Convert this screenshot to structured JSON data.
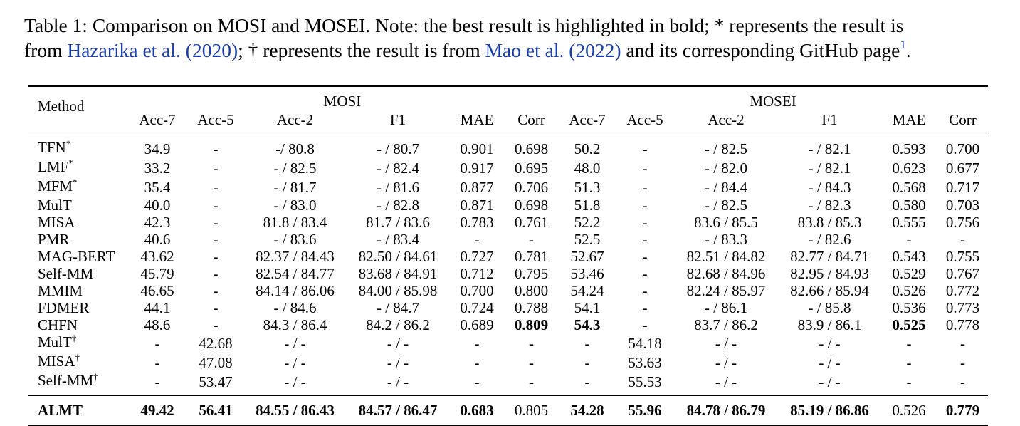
{
  "caption": {
    "part1": "Table 1: Comparison on MOSI and MOSEI. Note: the best result is highlighted in bold; * represents the result is",
    "part2": "from ",
    "cite1_author": "Hazarika et al.",
    "cite1_year": "2020",
    "part3": "; † represents the result is from ",
    "cite2_author": "Mao et al.",
    "cite2_year": "2022",
    "part4": " and its corresponding GitHub page",
    "footnote_mark": "1",
    "part5": "."
  },
  "header": {
    "method": "Method",
    "group_mosi": "MOSI",
    "group_mosei": "MOSEI",
    "columns": [
      "Acc-7",
      "Acc-5",
      "Acc-2",
      "F1",
      "MAE",
      "Corr",
      "Acc-7",
      "Acc-5",
      "Acc-2",
      "F1",
      "MAE",
      "Corr"
    ]
  },
  "rows": [
    {
      "name": "TFN",
      "mark": "*",
      "cells": [
        "34.9",
        "-",
        "-/ 80.8",
        "- / 80.7",
        "0.901",
        "0.698",
        "50.2",
        "-",
        "- / 82.5",
        "- / 82.1",
        "0.593",
        "0.700"
      ],
      "bold": []
    },
    {
      "name": "LMF",
      "mark": "*",
      "cells": [
        "33.2",
        "-",
        "- / 82.5",
        "- / 82.4",
        "0.917",
        "0.695",
        "48.0",
        "-",
        "- / 82.0",
        "- / 82.1",
        "0.623",
        "0.677"
      ],
      "bold": []
    },
    {
      "name": "MFM",
      "mark": "*",
      "cells": [
        "35.4",
        "-",
        "- / 81.7",
        "- / 81.6",
        "0.877",
        "0.706",
        "51.3",
        "-",
        "- / 84.4",
        "- / 84.3",
        "0.568",
        "0.717"
      ],
      "bold": []
    },
    {
      "name": "MulT",
      "mark": "",
      "cells": [
        "40.0",
        "-",
        "- / 83.0",
        "- / 82.8",
        "0.871",
        "0.698",
        "51.8",
        "-",
        "- / 82.5",
        "- / 82.3",
        "0.580",
        "0.703"
      ],
      "bold": []
    },
    {
      "name": "MISA",
      "mark": "",
      "cells": [
        "42.3",
        "-",
        "81.8 / 83.4",
        "81.7 / 83.6",
        "0.783",
        "0.761",
        "52.2",
        "-",
        "83.6 / 85.5",
        "83.8 / 85.3",
        "0.555",
        "0.756"
      ],
      "bold": []
    },
    {
      "name": "PMR",
      "mark": "",
      "cells": [
        "40.6",
        "-",
        "- / 83.6",
        "- / 83.4",
        "-",
        "-",
        "52.5",
        "-",
        "- / 83.3",
        "- / 82.6",
        "-",
        "-"
      ],
      "bold": []
    },
    {
      "name": "MAG-BERT",
      "mark": "",
      "cells": [
        "43.62",
        "-",
        "82.37 / 84.43",
        "82.50 / 84.61",
        "0.727",
        "0.781",
        "52.67",
        "-",
        "82.51 / 84.82",
        "82.77 / 84.71",
        "0.543",
        "0.755"
      ],
      "bold": []
    },
    {
      "name": "Self-MM",
      "mark": "",
      "cells": [
        "45.79",
        "-",
        "82.54 / 84.77",
        "83.68 / 84.91",
        "0.712",
        "0.795",
        "53.46",
        "-",
        "82.68 / 84.96",
        "82.95 / 84.93",
        "0.529",
        "0.767"
      ],
      "bold": []
    },
    {
      "name": "MMIM",
      "mark": "",
      "cells": [
        "46.65",
        "-",
        "84.14 / 86.06",
        "84.00 / 85.98",
        "0.700",
        "0.800",
        "54.24",
        "-",
        "82.24 / 85.97",
        "82.66 / 85.94",
        "0.526",
        "0.772"
      ],
      "bold": []
    },
    {
      "name": "FDMER",
      "mark": "",
      "cells": [
        "44.1",
        "-",
        "- / 84.6",
        "- / 84.7",
        "0.724",
        "0.788",
        "54.1",
        "-",
        "- / 86.1",
        "- / 85.8",
        "0.536",
        "0.773"
      ],
      "bold": []
    },
    {
      "name": "CHFN",
      "mark": "",
      "cells": [
        "48.6",
        "-",
        "84.3 / 86.4",
        "84.2 / 86.2",
        "0.689",
        "0.809",
        "54.3",
        "-",
        "83.7 / 86.2",
        "83.9 / 86.1",
        "0.525",
        "0.778"
      ],
      "bold": [
        5,
        6,
        10
      ]
    },
    {
      "name": "MulT",
      "mark": "†",
      "cells": [
        "-",
        "42.68",
        "- / -",
        "- / -",
        "-",
        "-",
        "-",
        "54.18",
        "- / -",
        "- / -",
        "-",
        "-"
      ],
      "bold": []
    },
    {
      "name": "MISA",
      "mark": "†",
      "cells": [
        "-",
        "47.08",
        "- / -",
        "- / -",
        "-",
        "-",
        "-",
        "53.63",
        "- / -",
        "- / -",
        "-",
        "-"
      ],
      "bold": []
    },
    {
      "name": "Self-MM",
      "mark": "†",
      "cells": [
        "-",
        "53.47",
        "- / -",
        "- / -",
        "-",
        "-",
        "-",
        "55.53",
        "- / -",
        "- / -",
        "-",
        "-"
      ],
      "bold": []
    }
  ],
  "final_row": {
    "name": "ALMT",
    "cells": [
      "49.42",
      "56.41",
      "84.55 / 86.43",
      "84.57 / 86.47",
      "0.683",
      "0.805",
      "54.28",
      "55.96",
      "84.78 / 86.79",
      "85.19 / 86.86",
      "0.526",
      "0.779"
    ],
    "bold": [
      0,
      1,
      2,
      3,
      4,
      6,
      7,
      8,
      9,
      11
    ]
  }
}
